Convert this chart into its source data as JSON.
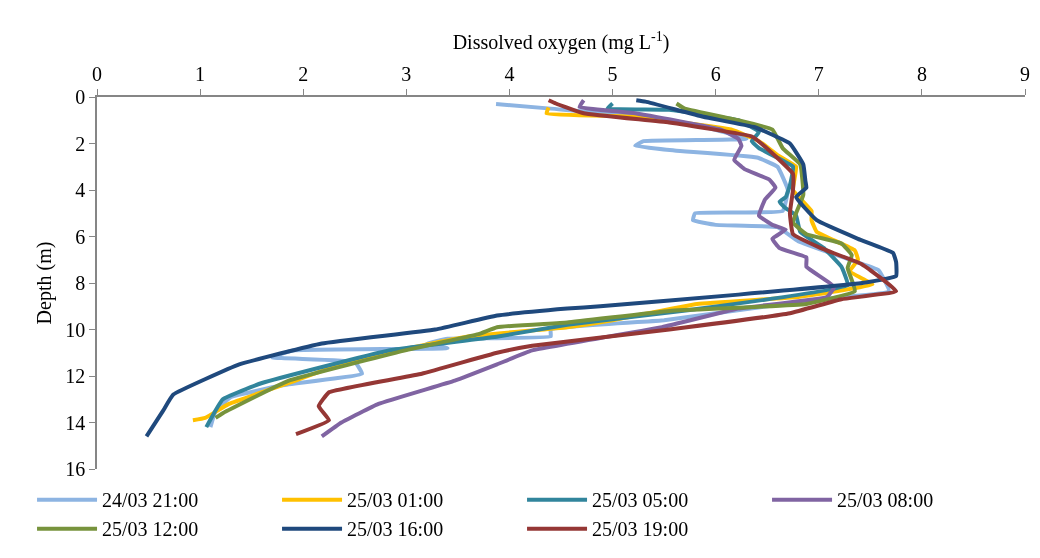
{
  "chart_data": {
    "type": "line",
    "xlabel": "Dissolved oxygen (mg L$^{-1}$)",
    "ylabel": "Depth (m)",
    "xlim": [
      0,
      9
    ],
    "xticks": [
      0,
      1,
      2,
      3,
      4,
      5,
      6,
      7,
      8,
      9
    ],
    "ylim": [
      16,
      0
    ],
    "yticks": [
      0,
      2,
      4,
      6,
      8,
      10,
      12,
      14,
      16
    ],
    "legend": "bottom",
    "marker": "none",
    "line_style": "solid",
    "series": [
      {
        "name": "24/03 21:00",
        "color": "#8db4e2",
        "x": [
          3.87,
          4.4,
          5.2,
          5.9,
          6.3,
          5.3,
          5.22,
          5.6,
          6.4,
          6.6,
          6.7,
          6.65,
          5.8,
          5.78,
          6.0,
          6.6,
          6.8,
          7.3,
          7.58,
          7.68,
          7.0,
          6.0,
          5.5,
          4.4,
          4.4,
          3.4,
          3.2,
          3.4,
          1.9,
          1.7,
          2.5,
          2.57,
          1.8,
          1.3,
          1.15,
          1.1
        ],
        "values": [
          0.3,
          0.5,
          0.8,
          1.3,
          1.8,
          1.9,
          2.1,
          2.3,
          2.6,
          3.0,
          4.0,
          4.9,
          5.0,
          5.3,
          5.5,
          5.6,
          6.2,
          7.0,
          7.45,
          8.35,
          8.7,
          9.3,
          9.6,
          10.0,
          10.3,
          10.4,
          10.6,
          10.8,
          10.9,
          11.2,
          11.4,
          11.9,
          12.4,
          12.9,
          13.5,
          14.2
        ]
      },
      {
        "name": "25/03 01:00",
        "color": "#ffc000",
        "x": [
          4.38,
          4.36,
          5.2,
          6.15,
          6.42,
          6.6,
          6.78,
          6.75,
          6.93,
          6.93,
          6.98,
          7.35,
          7.38,
          7.3,
          7.52,
          6.8,
          5.82,
          5.0,
          4.56,
          3.6,
          2.95,
          2.3,
          1.86,
          1.28,
          1.05,
          0.93
        ],
        "values": [
          0.45,
          0.7,
          0.85,
          1.4,
          1.9,
          2.5,
          3.0,
          4.0,
          4.9,
          5.3,
          5.8,
          6.6,
          7.0,
          7.5,
          8.06,
          8.6,
          8.9,
          9.6,
          9.9,
          10.3,
          10.87,
          11.6,
          12.3,
          13.2,
          13.8,
          13.9
        ]
      },
      {
        "name": "25/03 05:00",
        "color": "#31859c",
        "x": [
          5.0,
          4.95,
          5.55,
          6.22,
          6.42,
          6.35,
          6.42,
          6.75,
          6.72,
          6.68,
          6.62,
          6.67,
          6.78,
          6.82,
          7.05,
          7.22,
          7.28,
          5.75,
          4.56,
          3.89,
          2.83,
          1.6,
          1.22,
          1.06
        ],
        "values": [
          0.28,
          0.5,
          0.55,
          1.0,
          1.5,
          1.9,
          2.2,
          3.0,
          3.8,
          4.3,
          4.5,
          4.75,
          5.1,
          5.8,
          6.5,
          7.3,
          8.1,
          9.16,
          9.8,
          10.3,
          10.9,
          12.3,
          13.0,
          14.2
        ]
      },
      {
        "name": "25/03 08:00",
        "color": "#8064a2",
        "x": [
          4.72,
          4.68,
          5.22,
          6.05,
          6.22,
          6.25,
          6.18,
          6.28,
          6.52,
          6.58,
          6.48,
          6.42,
          6.55,
          6.68,
          6.55,
          6.62,
          6.88,
          6.88,
          7.15,
          7.08,
          6.22,
          5.48,
          4.22,
          3.88,
          3.47,
          2.73,
          2.37,
          2.18
        ],
        "values": [
          0.14,
          0.43,
          0.7,
          1.4,
          1.8,
          2.1,
          2.7,
          3.1,
          3.55,
          3.9,
          4.4,
          5.1,
          5.5,
          5.7,
          6.1,
          6.5,
          6.9,
          7.3,
          8.16,
          8.6,
          9.1,
          9.9,
          10.9,
          11.5,
          12.2,
          13.2,
          14.0,
          14.6
        ]
      },
      {
        "name": "25/03 12:00",
        "color": "#77933c",
        "x": [
          5.62,
          5.7,
          6.22,
          6.55,
          6.65,
          6.82,
          6.85,
          6.78,
          6.75,
          6.88,
          7.22,
          7.32,
          7.28,
          7.35,
          6.88,
          5.55,
          4.56,
          3.88,
          3.7,
          2.99,
          1.86,
          1.22,
          1.15
        ],
        "values": [
          0.28,
          0.5,
          1.0,
          1.4,
          2.2,
          2.9,
          4.2,
          5.0,
          5.4,
          5.9,
          6.3,
          6.8,
          7.35,
          8.35,
          8.9,
          9.2,
          9.7,
          9.9,
          10.2,
          10.9,
          12.2,
          13.6,
          13.8
        ]
      },
      {
        "name": "25/03 16:00",
        "color": "#1f497d",
        "x": [
          5.23,
          5.32,
          5.88,
          6.38,
          6.72,
          6.85,
          6.87,
          6.88,
          6.78,
          6.98,
          7.38,
          7.72,
          7.75,
          7.75,
          7.42,
          6.22,
          4.88,
          4.56,
          3.88,
          3.28,
          2.18,
          1.38,
          0.74,
          0.64,
          0.48
        ],
        "values": [
          0.14,
          0.2,
          0.85,
          1.3,
          2.0,
          2.9,
          3.6,
          3.9,
          4.3,
          5.3,
          6.1,
          6.7,
          7.1,
          7.7,
          8.0,
          8.5,
          9.0,
          9.1,
          9.4,
          10.0,
          10.6,
          11.5,
          12.8,
          13.5,
          14.6
        ]
      },
      {
        "name": "25/03 19:00",
        "color": "#953735",
        "x": [
          4.38,
          4.45,
          4.72,
          5.55,
          6.35,
          6.52,
          6.75,
          6.75,
          6.72,
          6.75,
          7.02,
          7.42,
          7.75,
          7.22,
          6.72,
          5.55,
          4.22,
          3.88,
          3.15,
          2.25,
          2.15,
          2.25,
          1.93
        ],
        "values": [
          0.14,
          0.28,
          0.7,
          1.1,
          1.7,
          2.3,
          3.3,
          4.0,
          5.0,
          5.9,
          6.5,
          7.2,
          8.35,
          8.7,
          9.3,
          10.0,
          10.7,
          11.0,
          11.9,
          12.7,
          13.3,
          13.9,
          14.5
        ]
      }
    ]
  }
}
